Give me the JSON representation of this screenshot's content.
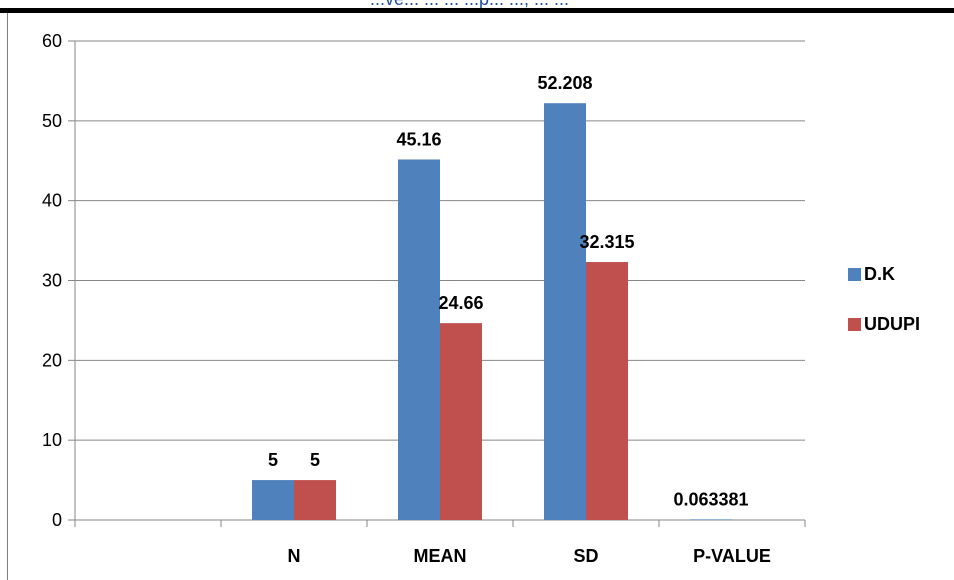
{
  "header": {
    "cut_text": "...ve... ... ... ...p... ..., ... ..."
  },
  "chart_data": {
    "type": "bar",
    "categories": [
      "",
      "N",
      "MEAN",
      "SD",
      "P-VALUE"
    ],
    "series": [
      {
        "name": "D.K",
        "color": "#4f81bd",
        "values": [
          null,
          5,
          45.16,
          52.208,
          0.063381
        ]
      },
      {
        "name": "UDUPI",
        "color": "#c0504d",
        "values": [
          null,
          5,
          24.66,
          32.315,
          null
        ]
      }
    ],
    "data_labels": [
      {
        "category": "N",
        "series": "D.K",
        "text": "5"
      },
      {
        "category": "N",
        "series": "UDUPI",
        "text": "5"
      },
      {
        "category": "MEAN",
        "series": "D.K",
        "text": "45.16"
      },
      {
        "category": "MEAN",
        "series": "UDUPI",
        "text": "24.66"
      },
      {
        "category": "SD",
        "series": "D.K",
        "text": "52.208"
      },
      {
        "category": "SD",
        "series": "UDUPI",
        "text": "32.315"
      },
      {
        "category": "P-VALUE",
        "series": "D.K",
        "text": "0.063381"
      }
    ],
    "yticks": [
      "0",
      "10",
      "20",
      "30",
      "40",
      "50",
      "60"
    ],
    "ylim": [
      0,
      60
    ],
    "ytick_step": 10,
    "grid": true,
    "legend_position": "right",
    "title": "",
    "xlabel": "",
    "ylabel": ""
  }
}
